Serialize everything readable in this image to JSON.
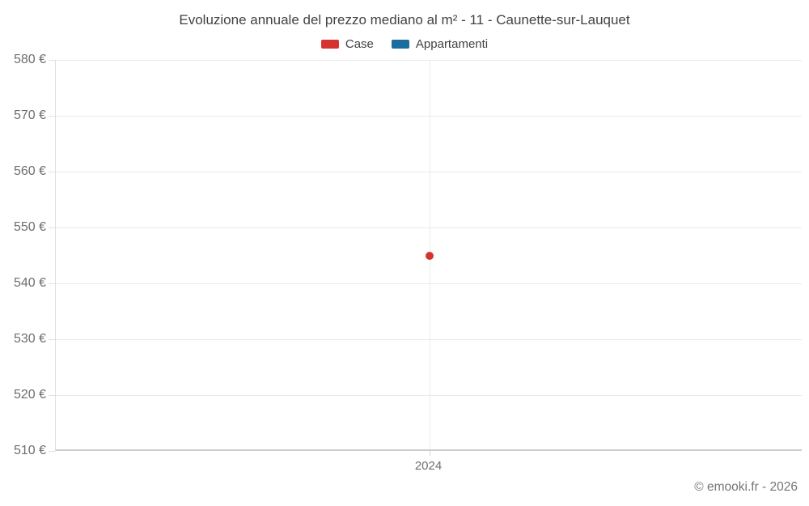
{
  "title": "Evoluzione annuale del prezzo mediano al m² - 11 - Caunette-sur-Lauquet",
  "footer": "© emooki.fr - 2026",
  "chart_data": {
    "type": "scatter",
    "title": "Evoluzione annuale del prezzo mediano al m² - 11 - Caunette-sur-Lauquet",
    "xlabel": "",
    "ylabel": "",
    "x_categories": [
      "2024"
    ],
    "y_axis": {
      "min": 510,
      "max": 580,
      "step": 10,
      "tick_suffix": " €"
    },
    "y_tick_labels": [
      "580 €",
      "570 €",
      "560 €",
      "550 €",
      "540 €",
      "530 €",
      "520 €",
      "510 €"
    ],
    "grid": true,
    "legend_position": "top",
    "series": [
      {
        "name": "Case",
        "color": "#d63230",
        "points": [
          {
            "x": "2024",
            "y": 545
          }
        ]
      },
      {
        "name": "Appartamenti",
        "color": "#1b6d9d",
        "points": []
      }
    ]
  }
}
